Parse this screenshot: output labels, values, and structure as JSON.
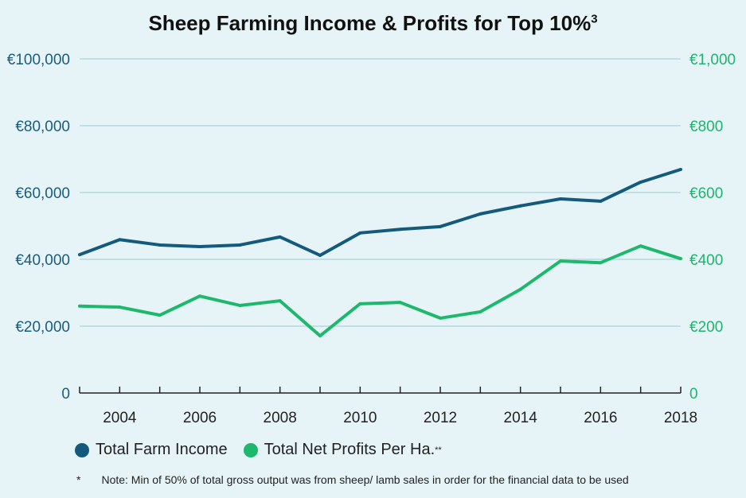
{
  "chart_data": {
    "type": "line",
    "title": "Sheep Farming Income & Profits for Top 10%",
    "title_superscript": "3",
    "x": [
      2003,
      2004,
      2005,
      2006,
      2007,
      2008,
      2009,
      2010,
      2011,
      2012,
      2013,
      2014,
      2015,
      2016,
      2017,
      2018
    ],
    "x_tick_labels": [
      "2004",
      "2006",
      "2008",
      "2010",
      "2012",
      "2014",
      "2016",
      "2018"
    ],
    "y_left_ticks": [
      "0",
      "€20,000",
      "€40,000",
      "€60,000",
      "€80,000",
      "€100,000"
    ],
    "y_right_ticks": [
      "0",
      "€200",
      "€400",
      "€600",
      "€800",
      "€1,000"
    ],
    "ylim_left": [
      0,
      100000
    ],
    "ylim_right": [
      0,
      1000
    ],
    "grid": true,
    "legend_placement": "bottom-left",
    "series": [
      {
        "name": "Total Farm Income",
        "axis": "left",
        "color": "#135a7c",
        "values": [
          41400,
          45900,
          44300,
          43800,
          44300,
          46700,
          41200,
          47900,
          49000,
          49800,
          53600,
          56000,
          58100,
          57400,
          63100,
          66900
        ]
      },
      {
        "name": "Total Net Profits Per Ha.",
        "name_superscript": "**",
        "axis": "right",
        "color": "#1db86b",
        "values": [
          260,
          257,
          233,
          290,
          262,
          276,
          171,
          267,
          271,
          224,
          243,
          310,
          395,
          390,
          440,
          402
        ]
      }
    ],
    "colors": {
      "background": "#e6f4f7",
      "grid": "#bfe0e6",
      "left_axis_text": "#1a5c7c",
      "right_axis_text": "#1fb46c"
    }
  },
  "note": {
    "marker": "*",
    "text": "Note: Min of 50% of total gross output was from sheep/ lamb sales in order for the financial data to be used"
  }
}
